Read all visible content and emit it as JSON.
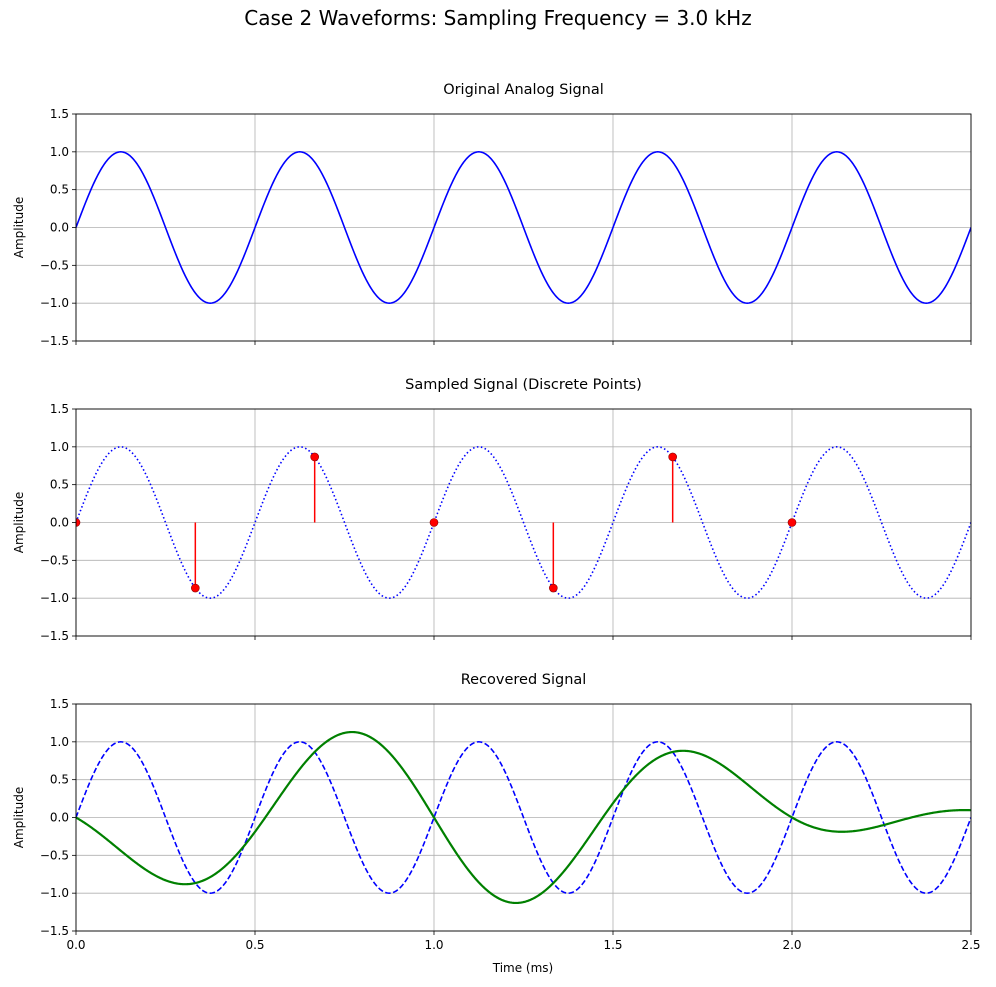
{
  "chart_data": {
    "type": "line",
    "title": "Case 2 Waveforms: Sampling Frequency = 3.0 kHz",
    "signal_frequency_khz": 2.0,
    "sampling_frequency_khz": 3.0,
    "xlim": [
      0,
      2.5
    ],
    "ylim": [
      -1.5,
      1.5
    ],
    "xticks": [
      "0.0",
      "0.5",
      "1.0",
      "1.5",
      "2.0",
      "2.5"
    ],
    "yticks": [
      "1.5",
      "1.0",
      "0.5",
      "0.0",
      "−0.5",
      "−1.0",
      "−1.5"
    ],
    "xlabel": "Time (ms)",
    "grid": true,
    "subplots": [
      {
        "title": "Original Analog Signal",
        "ylabel": "Amplitude",
        "series": [
          {
            "name": "analog",
            "style": "solid",
            "color": "#0000ff",
            "formula": "sin(2*pi*2*t)"
          }
        ]
      },
      {
        "title": "Sampled Signal (Discrete Points)",
        "ylabel": "Amplitude",
        "series": [
          {
            "name": "analog",
            "style": "dotted",
            "color": "#0000ff",
            "formula": "sin(2*pi*2*t)"
          },
          {
            "name": "samples",
            "style": "stem",
            "color": "#ff0000",
            "x": [
              0,
              0.3333,
              0.6667,
              1.0,
              1.3333,
              1.6667,
              2.0
            ],
            "y": [
              0,
              -0.866,
              0.866,
              0,
              -0.866,
              0.866,
              0
            ]
          }
        ]
      },
      {
        "title": "Recovered Signal",
        "ylabel": "Amplitude",
        "series": [
          {
            "name": "analog",
            "style": "dashed",
            "color": "#0000ff",
            "formula": "sin(2*pi*2*t)"
          },
          {
            "name": "recovered",
            "style": "solid",
            "color": "#008000",
            "formula": "sinc interpolation of samples"
          }
        ]
      }
    ]
  }
}
